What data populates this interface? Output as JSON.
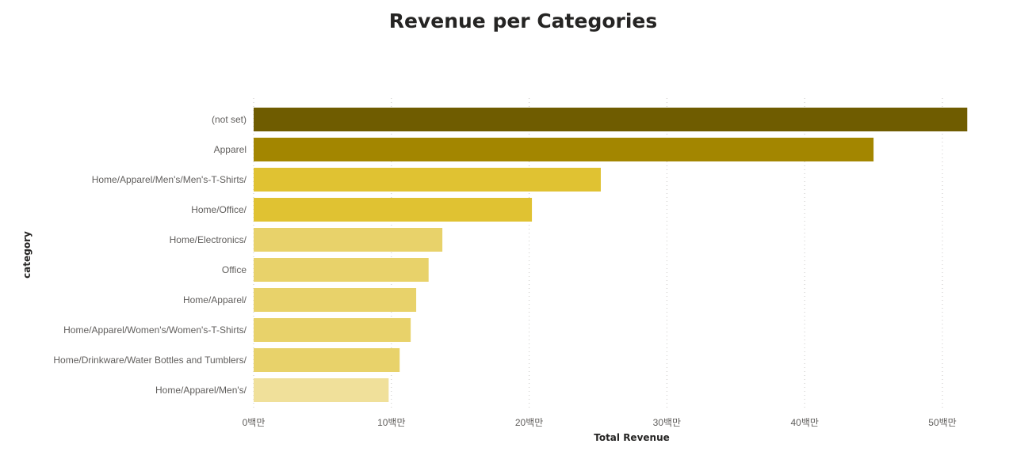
{
  "chart_data": {
    "type": "bar",
    "orientation": "horizontal",
    "title": "Revenue per Categories",
    "xlabel": "Total Revenue",
    "ylabel": "category",
    "xlim": [
      0,
      52000000
    ],
    "x_ticks": [
      0,
      10000000,
      20000000,
      30000000,
      40000000,
      50000000
    ],
    "x_tick_labels": [
      "0백만",
      "10백만",
      "20백만",
      "30백만",
      "40백만",
      "50백만"
    ],
    "grid": "vertical dotted",
    "categories": [
      "(not set)",
      "Apparel",
      "Home/Apparel/Men's/Men's-T-Shirts/",
      "Home/Office/",
      "Home/Electronics/",
      "Office",
      "Home/Apparel/",
      "Home/Apparel/Women's/Women's-T-Shirts/",
      "Home/Drinkware/Water Bottles and Tumblers/",
      "Home/Apparel/Men's/"
    ],
    "values": [
      51800000,
      45000000,
      25200000,
      20200000,
      13700000,
      12700000,
      11800000,
      11400000,
      10600000,
      9800000
    ],
    "bar_colors": [
      "#6f5c00",
      "#a38600",
      "#e0c232",
      "#e0c232",
      "#e8d26a",
      "#e8d26a",
      "#e8d26a",
      "#e8d26a",
      "#e8d26a",
      "#f0e09a"
    ]
  }
}
